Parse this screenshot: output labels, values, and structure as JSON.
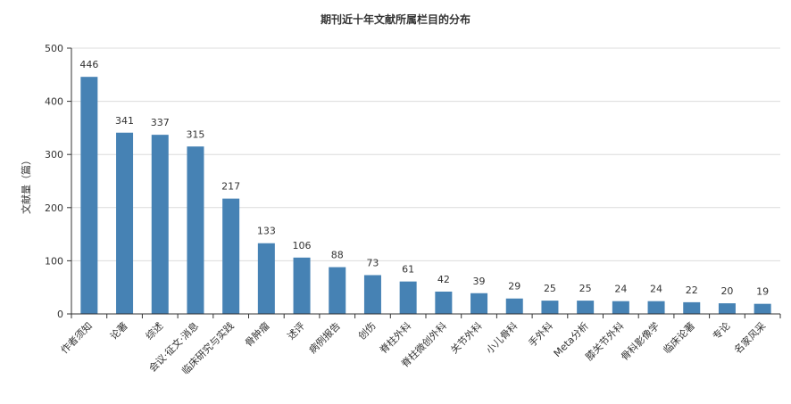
{
  "chart_data": {
    "type": "bar",
    "title": "期刊近十年文献所属栏目的分布",
    "xlabel": "",
    "ylabel": "文献量（篇）",
    "ylim": [
      0,
      500
    ],
    "yticks": [
      0,
      100,
      200,
      300,
      400,
      500
    ],
    "categories": [
      "作者须知",
      "论著",
      "综述",
      "会议·征文·消息",
      "临床研究与实践",
      "骨肿瘤",
      "述评",
      "病例报告",
      "创伤",
      "脊柱外科",
      "脊柱微创外科",
      "关节外科",
      "小儿骨科",
      "手外科",
      "Meta分析",
      "膝关节外科",
      "骨科影像学",
      "临床论著",
      "专论",
      "名家风采"
    ],
    "values": [
      446,
      341,
      337,
      315,
      217,
      133,
      106,
      88,
      73,
      61,
      42,
      39,
      29,
      25,
      25,
      24,
      24,
      22,
      20,
      19
    ],
    "bar_color": "#4682b4",
    "grid": true
  }
}
